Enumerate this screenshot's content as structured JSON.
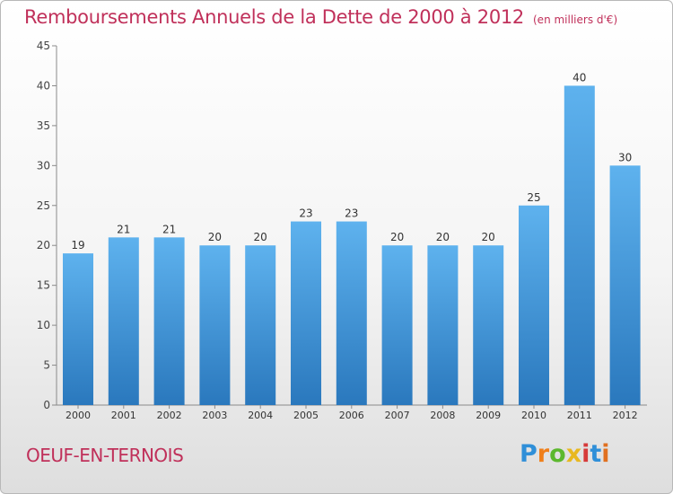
{
  "chart_data": {
    "type": "bar",
    "title": "Remboursements Annuels de la Dette de 2000 à 2012",
    "subtitle": "(en milliers d'€)",
    "categories": [
      "2000",
      "2001",
      "2002",
      "2003",
      "2004",
      "2005",
      "2006",
      "2007",
      "2008",
      "2009",
      "2010",
      "2011",
      "2012"
    ],
    "values": [
      19,
      21,
      21,
      20,
      20,
      23,
      23,
      20,
      20,
      20,
      25,
      40,
      30
    ],
    "ylim": [
      0,
      45
    ],
    "yticks": [
      0,
      5,
      10,
      15,
      20,
      25,
      30,
      35,
      40,
      45
    ],
    "grid": false,
    "bar_color": "#3f97d9"
  },
  "footer": {
    "commune": "OEUF-EN-TERNOIS",
    "logo_letters": [
      "P",
      "r",
      "o",
      "x",
      "i",
      "t",
      "i"
    ],
    "logo_colors": [
      "#2f8fd8",
      "#f07f1a",
      "#5cb82e",
      "#e8b820",
      "#d63a3a",
      "#2f8fd8",
      "#e07020"
    ]
  }
}
